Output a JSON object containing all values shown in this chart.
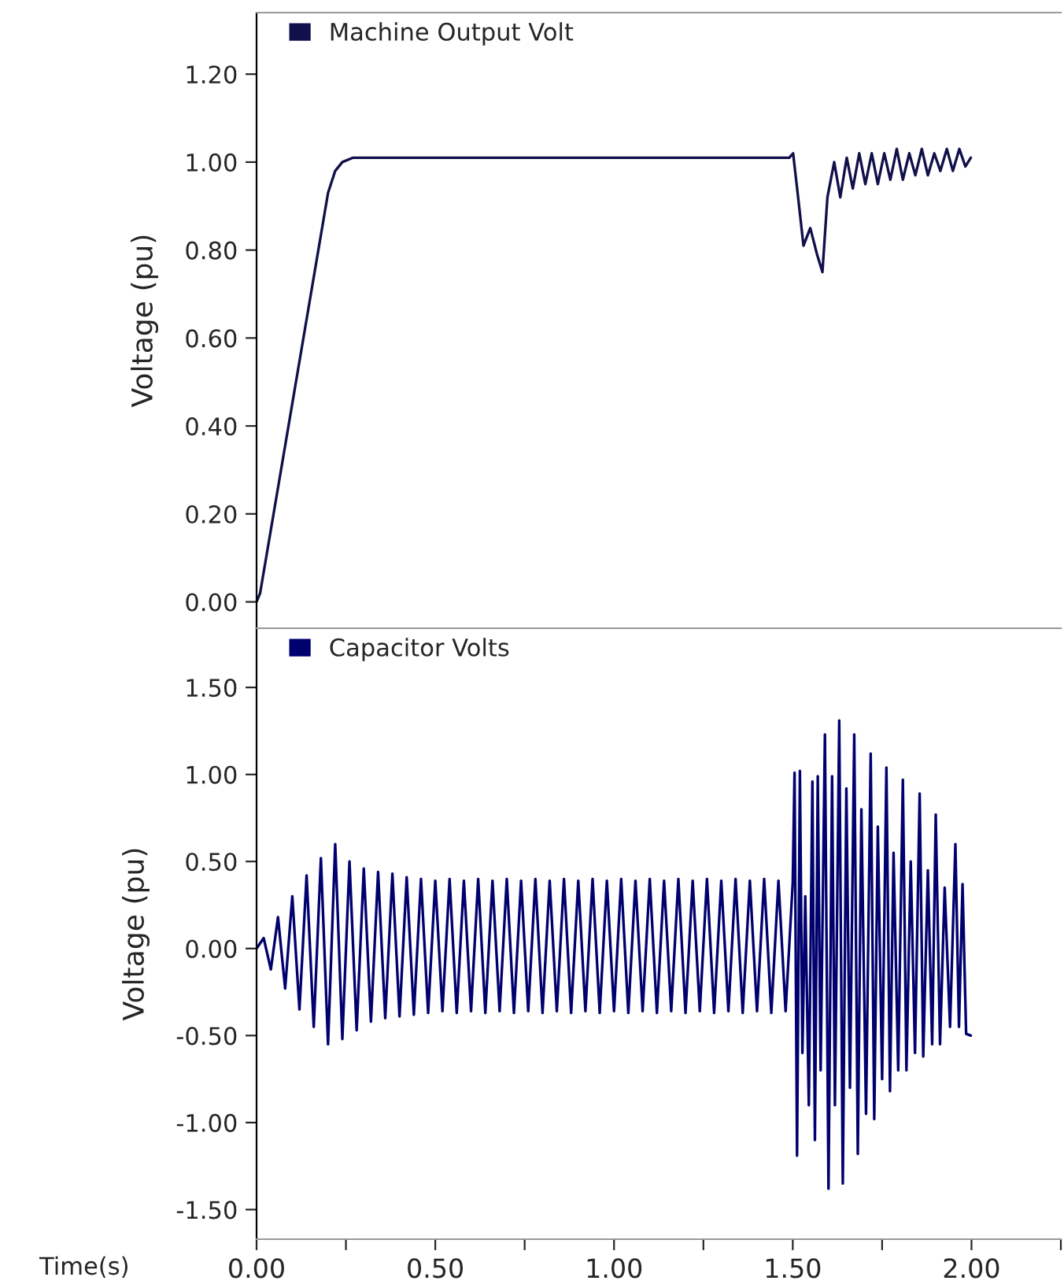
{
  "chart_data": [
    {
      "type": "line",
      "ylabel": "Voltage (pu)",
      "legend": "top left",
      "grid": false,
      "tick_labels": "y",
      "xlim": [
        0,
        2.25
      ],
      "ylim": [
        -0.06,
        1.34
      ],
      "yticks": [
        {
          "value": 0,
          "label": "0.00"
        },
        {
          "value": 0.2,
          "label": "0.20"
        },
        {
          "value": 0.4,
          "label": "0.40"
        },
        {
          "value": 0.6,
          "label": "0.60"
        },
        {
          "value": 0.8,
          "label": "0.80"
        },
        {
          "value": 1.0,
          "label": "1.00"
        },
        {
          "value": 1.2,
          "label": "1.20"
        }
      ],
      "series": [
        {
          "name": "Machine Output Volt",
          "color": "#10104a",
          "x": [
            0,
            0.01,
            0.2,
            0.22,
            0.24,
            0.27,
            0.3,
            1.0,
            1.49,
            1.501,
            1.515,
            1.53,
            1.549,
            1.568,
            1.583,
            1.597,
            1.616,
            1.633,
            1.651,
            1.668,
            1.686,
            1.703,
            1.721,
            1.738,
            1.756,
            1.773,
            1.791,
            1.808,
            1.826,
            1.843,
            1.861,
            1.878,
            1.896,
            1.913,
            1.931,
            1.948,
            1.966,
            1.983,
            1.998
          ],
          "values": [
            0,
            0.02,
            0.93,
            0.98,
            1.0,
            1.01,
            1.01,
            1.01,
            1.01,
            1.02,
            0.92,
            0.81,
            0.85,
            0.79,
            0.75,
            0.92,
            1.0,
            0.92,
            1.01,
            0.94,
            1.02,
            0.95,
            1.02,
            0.95,
            1.02,
            0.96,
            1.03,
            0.96,
            1.02,
            0.97,
            1.03,
            0.97,
            1.02,
            0.98,
            1.03,
            0.98,
            1.03,
            0.99,
            1.01
          ]
        }
      ]
    },
    {
      "type": "line",
      "ylabel": "Voltage (pu)",
      "xlabel": "Time(s)",
      "legend": "top left",
      "grid": false,
      "xlim": [
        0,
        2.25
      ],
      "xticks": [
        {
          "value": 0,
          "label": "0.00"
        },
        {
          "value": 0.25,
          "label": null
        },
        {
          "value": 0.5,
          "label": "0.50"
        },
        {
          "value": 0.75,
          "label": null
        },
        {
          "value": 1,
          "label": "1.00"
        },
        {
          "value": 1.25,
          "label": null
        },
        {
          "value": 1.5,
          "label": "1.50"
        },
        {
          "value": 1.75,
          "label": null
        },
        {
          "value": 2,
          "label": "2.00"
        },
        {
          "value": 2.25,
          "label": null
        }
      ],
      "ylim": [
        -1.67,
        1.84
      ],
      "yticks": [
        {
          "value": -1.5,
          "label": "-1.50"
        },
        {
          "value": -1.0,
          "label": "-1.00"
        },
        {
          "value": -0.5,
          "label": "-0.50"
        },
        {
          "value": 0,
          "label": "0.00"
        },
        {
          "value": 0.5,
          "label": "0.50"
        },
        {
          "value": 1.0,
          "label": "1.00"
        },
        {
          "value": 1.5,
          "label": "1.50"
        }
      ],
      "series": [
        {
          "name": "Capacitor Volts",
          "color": "#00006e",
          "x": [
            0,
            0.02,
            0.04,
            0.06,
            0.08,
            0.1,
            0.12,
            0.14,
            0.16,
            0.18,
            0.2,
            0.22,
            0.24,
            0.26,
            0.28,
            0.3,
            0.32,
            0.34,
            0.36,
            0.38,
            0.4,
            0.42,
            0.44,
            0.46,
            0.48,
            0.5,
            0.52,
            0.54,
            0.56,
            0.58,
            0.6,
            0.62,
            0.64,
            0.66,
            0.68,
            0.7,
            0.72,
            0.74,
            0.76,
            0.78,
            0.8,
            0.82,
            0.84,
            0.86,
            0.88,
            0.9,
            0.92,
            0.94,
            0.96,
            0.98,
            1.0,
            1.02,
            1.04,
            1.06,
            1.08,
            1.1,
            1.12,
            1.14,
            1.16,
            1.18,
            1.2,
            1.22,
            1.24,
            1.26,
            1.28,
            1.3,
            1.32,
            1.34,
            1.36,
            1.38,
            1.4,
            1.42,
            1.44,
            1.46,
            1.48,
            1.5,
            1.505,
            1.512,
            1.52,
            1.527,
            1.535,
            1.545,
            1.555,
            1.562,
            1.57,
            1.578,
            1.59,
            1.6,
            1.61,
            1.618,
            1.63,
            1.64,
            1.65,
            1.66,
            1.672,
            1.682,
            1.692,
            1.705,
            1.718,
            1.728,
            1.738,
            1.75,
            1.762,
            1.772,
            1.782,
            1.795,
            1.808,
            1.818,
            1.83,
            1.842,
            1.855,
            1.865,
            1.878,
            1.89,
            1.9,
            1.912,
            1.925,
            1.94,
            1.955,
            1.965,
            1.975,
            1.985,
            1.998
          ],
          "values": [
            0,
            0.06,
            -0.12,
            0.18,
            -0.23,
            0.3,
            -0.35,
            0.42,
            -0.45,
            0.52,
            -0.55,
            0.6,
            -0.52,
            0.5,
            -0.47,
            0.46,
            -0.42,
            0.44,
            -0.4,
            0.43,
            -0.39,
            0.41,
            -0.38,
            0.4,
            -0.37,
            0.39,
            -0.36,
            0.4,
            -0.37,
            0.39,
            -0.36,
            0.4,
            -0.37,
            0.39,
            -0.36,
            0.4,
            -0.37,
            0.39,
            -0.36,
            0.4,
            -0.37,
            0.39,
            -0.36,
            0.4,
            -0.37,
            0.39,
            -0.36,
            0.4,
            -0.37,
            0.39,
            -0.36,
            0.4,
            -0.37,
            0.39,
            -0.36,
            0.4,
            -0.37,
            0.39,
            -0.36,
            0.4,
            -0.37,
            0.39,
            -0.36,
            0.4,
            -0.37,
            0.39,
            -0.36,
            0.4,
            -0.37,
            0.39,
            -0.36,
            0.4,
            -0.37,
            0.39,
            -0.36,
            0.38,
            1.01,
            -1.19,
            1.02,
            -0.6,
            0.3,
            -0.9,
            0.96,
            -1.1,
            0.99,
            -0.7,
            1.23,
            -1.38,
            0.99,
            -0.9,
            1.31,
            -1.35,
            0.92,
            -0.8,
            1.23,
            -1.18,
            0.8,
            -0.95,
            1.12,
            -0.98,
            0.7,
            -0.75,
            1.04,
            -0.82,
            0.55,
            -0.7,
            0.97,
            -0.7,
            0.5,
            -0.6,
            0.89,
            -0.62,
            0.45,
            -0.55,
            0.77,
            -0.55,
            0.35,
            -0.45,
            0.6,
            -0.45,
            0.37,
            -0.49,
            -0.5
          ]
        }
      ]
    }
  ]
}
